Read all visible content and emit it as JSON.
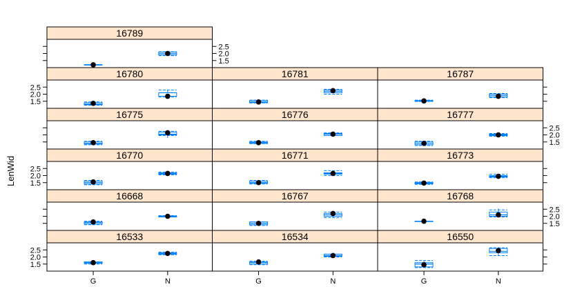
{
  "chart_data": {
    "type": "box",
    "ylabel": "LenWid",
    "categories": [
      "G",
      "N"
    ],
    "y_ticks": [
      1.5,
      2.0,
      2.5
    ],
    "y_tick_labels": [
      "1.5",
      "2.0",
      "2.5"
    ],
    "ylim": [
      1.0,
      3.0
    ],
    "colors": {
      "strip": "#ffe5cc",
      "box": "#0080ff",
      "point": "#000000",
      "frame": "#000000"
    },
    "panels": [
      {
        "label": "16789",
        "row": 0,
        "col": 0,
        "series": [
          {
            "q1": 1.2,
            "median": 1.2,
            "q3": 1.2,
            "wlo": 1.2,
            "whi": 1.2,
            "mean": 1.2,
            "ci_lo": 1.19,
            "ci_hi": 1.21
          },
          {
            "q1": 1.9,
            "median": 2.0,
            "q3": 2.1,
            "wlo": 1.9,
            "whi": 2.1,
            "mean": 2.0,
            "ci_lo": 1.85,
            "ci_hi": 2.12
          }
        ]
      },
      {
        "label": "16780",
        "row": 1,
        "col": 0,
        "series": [
          {
            "q1": 1.25,
            "median": 1.3,
            "q3": 1.4,
            "wlo": 1.25,
            "whi": 1.4,
            "mean": 1.35,
            "ci_lo": 1.22,
            "ci_hi": 1.45
          },
          {
            "q1": 1.85,
            "median": 2.1,
            "q3": 2.1,
            "wlo": 1.75,
            "whi": 2.3,
            "mean": 1.85,
            "ci_lo": 1.8,
            "ci_hi": 2.3
          }
        ]
      },
      {
        "label": "16781",
        "row": 1,
        "col": 1,
        "series": [
          {
            "q1": 1.4,
            "median": 1.45,
            "q3": 1.55,
            "wlo": 1.4,
            "whi": 1.55,
            "mean": 1.45,
            "ci_lo": 1.38,
            "ci_hi": 1.58
          },
          {
            "q1": 2.1,
            "median": 2.2,
            "q3": 2.3,
            "wlo": 2.05,
            "whi": 2.35,
            "mean": 2.25,
            "ci_lo": 2.0,
            "ci_hi": 2.35
          }
        ]
      },
      {
        "label": "16787",
        "row": 1,
        "col": 2,
        "series": [
          {
            "q1": 1.5,
            "median": 1.52,
            "q3": 1.55,
            "wlo": 1.48,
            "whi": 1.58,
            "mean": 1.52,
            "ci_lo": 1.48,
            "ci_hi": 1.58
          },
          {
            "q1": 1.8,
            "median": 1.9,
            "q3": 2.0,
            "wlo": 1.75,
            "whi": 2.05,
            "mean": 1.85,
            "ci_lo": 1.75,
            "ci_hi": 2.05
          }
        ]
      },
      {
        "label": "16775",
        "row": 2,
        "col": 0,
        "series": [
          {
            "q1": 1.35,
            "median": 1.4,
            "q3": 1.5,
            "wlo": 1.3,
            "whi": 1.55,
            "mean": 1.45,
            "ci_lo": 1.3,
            "ci_hi": 1.55
          },
          {
            "q1": 2.0,
            "median": 2.05,
            "q3": 2.2,
            "wlo": 1.8,
            "whi": 2.3,
            "mean": 2.15,
            "ci_lo": 1.95,
            "ci_hi": 2.25
          }
        ]
      },
      {
        "label": "16776",
        "row": 2,
        "col": 1,
        "series": [
          {
            "q1": 1.4,
            "median": 1.45,
            "q3": 1.5,
            "wlo": 1.4,
            "whi": 1.55,
            "mean": 1.45,
            "ci_lo": 1.38,
            "ci_hi": 1.55
          },
          {
            "q1": 1.95,
            "median": 2.05,
            "q3": 2.1,
            "wlo": 1.95,
            "whi": 2.15,
            "mean": 2.05,
            "ci_lo": 1.95,
            "ci_hi": 2.15
          }
        ]
      },
      {
        "label": "16777",
        "row": 2,
        "col": 2,
        "series": [
          {
            "q1": 1.3,
            "median": 1.4,
            "q3": 1.5,
            "wlo": 1.25,
            "whi": 1.55,
            "mean": 1.4,
            "ci_lo": 1.25,
            "ci_hi": 1.55
          },
          {
            "q1": 1.95,
            "median": 2.0,
            "q3": 2.05,
            "wlo": 1.9,
            "whi": 2.1,
            "mean": 2.0,
            "ci_lo": 1.9,
            "ci_hi": 2.1
          }
        ]
      },
      {
        "label": "16770",
        "row": 3,
        "col": 0,
        "series": [
          {
            "q1": 1.4,
            "median": 1.5,
            "q3": 1.6,
            "wlo": 1.35,
            "whi": 1.65,
            "mean": 1.55,
            "ci_lo": 1.35,
            "ci_hi": 1.65
          },
          {
            "q1": 2.1,
            "median": 2.15,
            "q3": 2.2,
            "wlo": 2.05,
            "whi": 2.25,
            "mean": 2.15,
            "ci_lo": 2.05,
            "ci_hi": 2.25
          }
        ]
      },
      {
        "label": "16771",
        "row": 3,
        "col": 1,
        "series": [
          {
            "q1": 1.45,
            "median": 1.5,
            "q3": 1.6,
            "wlo": 1.4,
            "whi": 1.65,
            "mean": 1.5,
            "ci_lo": 1.4,
            "ci_hi": 1.65
          },
          {
            "q1": 2.1,
            "median": 2.15,
            "q3": 2.2,
            "wlo": 2.0,
            "whi": 2.35,
            "mean": 2.15,
            "ci_lo": 2.0,
            "ci_hi": 2.35
          }
        ]
      },
      {
        "label": "16773",
        "row": 3,
        "col": 2,
        "series": [
          {
            "q1": 1.42,
            "median": 1.47,
            "q3": 1.52,
            "wlo": 1.38,
            "whi": 1.55,
            "mean": 1.47,
            "ci_lo": 1.38,
            "ci_hi": 1.55
          },
          {
            "q1": 1.9,
            "median": 1.95,
            "q3": 2.0,
            "wlo": 1.85,
            "whi": 2.1,
            "mean": 1.95,
            "ci_lo": 1.85,
            "ci_hi": 2.1
          }
        ]
      },
      {
        "label": "16668",
        "row": 4,
        "col": 0,
        "series": [
          {
            "q1": 1.45,
            "median": 1.55,
            "q3": 1.6,
            "wlo": 1.4,
            "whi": 1.65,
            "mean": 1.6,
            "ci_lo": 1.4,
            "ci_hi": 1.65
          },
          {
            "q1": 1.95,
            "median": 2.0,
            "q3": 2.02,
            "wlo": 1.95,
            "whi": 2.05,
            "mean": 2.0,
            "ci_lo": 1.95,
            "ci_hi": 2.05
          }
        ]
      },
      {
        "label": "16767",
        "row": 4,
        "col": 1,
        "series": [
          {
            "q1": 1.4,
            "median": 1.5,
            "q3": 1.6,
            "wlo": 1.35,
            "whi": 1.6,
            "mean": 1.5,
            "ci_lo": 1.35,
            "ci_hi": 1.6
          },
          {
            "q1": 2.0,
            "median": 2.1,
            "q3": 2.2,
            "wlo": 1.9,
            "whi": 2.3,
            "mean": 2.2,
            "ci_lo": 1.9,
            "ci_hi": 2.3
          }
        ]
      },
      {
        "label": "16768",
        "row": 4,
        "col": 2,
        "series": [
          {
            "q1": 1.65,
            "median": 1.65,
            "q3": 1.65,
            "wlo": 1.65,
            "whi": 1.65,
            "mean": 1.65,
            "ci_lo": 1.64,
            "ci_hi": 1.66
          },
          {
            "q1": 2.0,
            "median": 2.1,
            "q3": 2.3,
            "wlo": 2.0,
            "whi": 2.55,
            "mean": 2.1,
            "ci_lo": 1.95,
            "ci_hi": 2.45
          }
        ]
      },
      {
        "label": "16533",
        "row": 5,
        "col": 0,
        "series": [
          {
            "q1": 1.55,
            "median": 1.6,
            "q3": 1.65,
            "wlo": 1.5,
            "whi": 1.65,
            "mean": 1.6,
            "ci_lo": 1.5,
            "ci_hi": 1.65
          },
          {
            "q1": 2.2,
            "median": 2.25,
            "q3": 2.3,
            "wlo": 2.15,
            "whi": 2.35,
            "mean": 2.25,
            "ci_lo": 2.15,
            "ci_hi": 2.35
          }
        ]
      },
      {
        "label": "16534",
        "row": 5,
        "col": 1,
        "series": [
          {
            "q1": 1.5,
            "median": 1.6,
            "q3": 1.65,
            "wlo": 1.45,
            "whi": 1.7,
            "mean": 1.65,
            "ci_lo": 1.45,
            "ci_hi": 1.7
          },
          {
            "q1": 2.05,
            "median": 2.1,
            "q3": 2.2,
            "wlo": 2.0,
            "whi": 2.2,
            "mean": 2.1,
            "ci_lo": 2.0,
            "ci_hi": 2.2
          }
        ]
      },
      {
        "label": "16550",
        "row": 5,
        "col": 2,
        "series": [
          {
            "q1": 1.3,
            "median": 1.5,
            "q3": 1.6,
            "wlo": 1.25,
            "whi": 1.75,
            "mean": 1.45,
            "ci_lo": 1.25,
            "ci_hi": 1.75
          },
          {
            "q1": 2.3,
            "median": 2.4,
            "q3": 2.6,
            "wlo": 2.1,
            "whi": 2.65,
            "mean": 2.45,
            "ci_lo": 2.1,
            "ci_hi": 2.65
          }
        ]
      }
    ]
  }
}
